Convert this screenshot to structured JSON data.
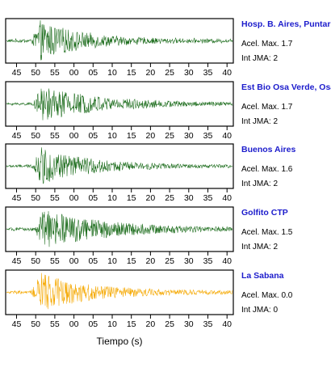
{
  "colors": {
    "strong": "#1a6b1a",
    "weak": "#f5a800",
    "station_name": "#1c1ccc"
  },
  "chart_data": {
    "type": "line",
    "xlabel": "Tiempo (s)",
    "xticks": [
      "45",
      "50",
      "55",
      "00",
      "05",
      "10",
      "15",
      "20",
      "25",
      "30",
      "35",
      "40"
    ],
    "panels": [
      {
        "station": "Hosp. B. Aires, Puntare",
        "acel_label": "Acel. Max. 1.7",
        "jma_label": "Int JMA: 2",
        "color": "#1a6b1a",
        "peak_x": 48,
        "amplitude": 0.95,
        "decay": 0.55,
        "noise": 0.35
      },
      {
        "station": "Est Bio Osa Verde, Osa",
        "acel_label": "Acel. Max. 1.7",
        "jma_label": "Int JMA: 2",
        "color": "#1a6b1a",
        "peak_x": 50,
        "amplitude": 0.85,
        "decay": 0.75,
        "noise": 0.08
      },
      {
        "station": "Buenos Aires",
        "acel_label": "Acel. Max. 1.6",
        "jma_label": "Int JMA: 2",
        "color": "#1a6b1a",
        "peak_x": 49,
        "amplitude": 0.9,
        "decay": 0.6,
        "noise": 0.12
      },
      {
        "station": "Golfito CTP",
        "acel_label": "Acel. Max. 1.5",
        "jma_label": "Int JMA: 2",
        "color": "#1a6b1a",
        "peak_x": 52,
        "amplitude": 0.95,
        "decay": 0.8,
        "noise": 0.05
      },
      {
        "station": "La Sabana",
        "acel_label": "Acel. Max. 0.0",
        "jma_label": "Int JMA: 0",
        "color": "#f5a800",
        "peak_x": 48,
        "amplitude": 0.95,
        "decay": 0.65,
        "noise": 0.1
      }
    ]
  }
}
